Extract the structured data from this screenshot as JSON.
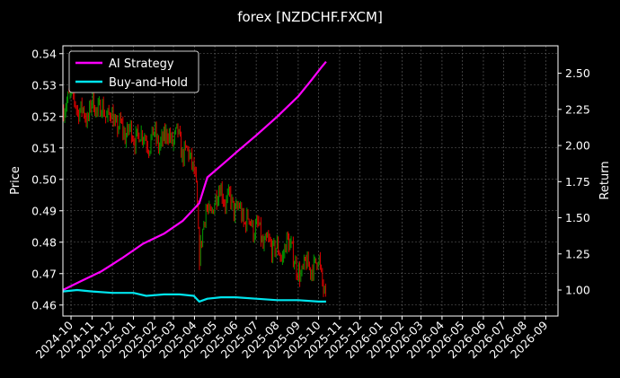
{
  "chart_data": {
    "type": "line",
    "title": "forex [NZDCHF.FXCM]",
    "ylabel_left": "Price",
    "ylabel_right": "Return",
    "x_range": [
      "2024-09-19",
      "2026-09-19"
    ],
    "x_ticks": [
      "2024-10",
      "2024-11",
      "2024-12",
      "2025-01",
      "2025-02",
      "2025-03",
      "2025-04",
      "2025-05",
      "2025-06",
      "2025-07",
      "2025-08",
      "2025-09",
      "2025-10",
      "2025-11",
      "2025-12",
      "2026-01",
      "2026-02",
      "2026-03",
      "2026-04",
      "2026-05",
      "2026-06",
      "2026-07",
      "2026-08",
      "2026-09"
    ],
    "left_axis": {
      "range": [
        0.4565,
        0.5425
      ],
      "ticks": [
        "0.46",
        "0.47",
        "0.48",
        "0.49",
        "0.50",
        "0.51",
        "0.52",
        "0.53",
        "0.54"
      ]
    },
    "right_axis": {
      "range": [
        0.82,
        2.69
      ],
      "ticks": [
        "1.00",
        "1.25",
        "1.50",
        "1.75",
        "2.00",
        "2.25",
        "2.50"
      ]
    },
    "grid": true,
    "legend_position": "top-left",
    "colors": {
      "up": "#009900",
      "down": "#dd0000",
      "strategy": "#ff00ff",
      "buyhold": "#00e5ee",
      "grid": "#666666"
    },
    "price_series": {
      "name": "NZDCHF.FXCM price",
      "x": [
        "2024-09-20",
        "2024-09-27",
        "2024-10-04",
        "2024-10-11",
        "2024-10-18",
        "2024-10-25",
        "2024-11-01",
        "2024-11-08",
        "2024-11-15",
        "2024-11-22",
        "2024-11-29",
        "2024-12-06",
        "2024-12-13",
        "2024-12-20",
        "2024-12-27",
        "2025-01-03",
        "2025-01-10",
        "2025-01-17",
        "2025-01-24",
        "2025-01-31",
        "2025-02-07",
        "2025-02-14",
        "2025-02-21",
        "2025-02-28",
        "2025-03-07",
        "2025-03-14",
        "2025-03-21",
        "2025-03-28",
        "2025-04-01",
        "2025-04-04",
        "2025-04-08",
        "2025-04-11",
        "2025-04-15",
        "2025-04-18",
        "2025-04-25",
        "2025-05-02",
        "2025-05-09",
        "2025-05-16",
        "2025-05-23",
        "2025-05-30",
        "2025-06-06",
        "2025-06-13",
        "2025-06-20",
        "2025-06-27",
        "2025-07-04",
        "2025-07-11",
        "2025-07-18",
        "2025-07-25",
        "2025-08-01",
        "2025-08-08",
        "2025-08-15",
        "2025-08-22",
        "2025-08-29",
        "2025-09-05",
        "2025-09-12",
        "2025-09-19",
        "2025-09-26",
        "2025-10-01",
        "2025-10-04",
        "2025-10-08",
        "2025-10-12"
      ],
      "values": [
        0.522,
        0.526,
        0.527,
        0.521,
        0.523,
        0.518,
        0.526,
        0.521,
        0.524,
        0.519,
        0.522,
        0.516,
        0.518,
        0.513,
        0.517,
        0.512,
        0.515,
        0.514,
        0.51,
        0.516,
        0.51,
        0.513,
        0.515,
        0.511,
        0.516,
        0.507,
        0.51,
        0.505,
        0.502,
        0.496,
        0.475,
        0.48,
        0.487,
        0.491,
        0.488,
        0.494,
        0.498,
        0.492,
        0.495,
        0.489,
        0.492,
        0.485,
        0.489,
        0.483,
        0.486,
        0.478,
        0.481,
        0.477,
        0.479,
        0.474,
        0.481,
        0.478,
        0.472,
        0.469,
        0.474,
        0.471,
        0.473,
        0.476,
        0.47,
        0.465,
        0.461
      ]
    },
    "series": [
      {
        "name": "AI Strategy",
        "axis": "right",
        "x": [
          "2024-09-19",
          "2024-10-15",
          "2024-11-15",
          "2024-12-15",
          "2025-01-15",
          "2025-02-15",
          "2025-03-15",
          "2025-03-31",
          "2025-04-08",
          "2025-04-20",
          "2025-05-10",
          "2025-06-01",
          "2025-07-01",
          "2025-08-01",
          "2025-09-01",
          "2025-09-20",
          "2025-10-05",
          "2025-10-12"
        ],
        "values": [
          1.0,
          1.06,
          1.13,
          1.22,
          1.32,
          1.39,
          1.48,
          1.56,
          1.6,
          1.78,
          1.86,
          1.95,
          2.07,
          2.2,
          2.34,
          2.45,
          2.54,
          2.58
        ]
      },
      {
        "name": "Buy-and-Hold",
        "axis": "right",
        "x": [
          "2024-09-19",
          "2024-10-10",
          "2024-11-01",
          "2024-12-01",
          "2025-01-01",
          "2025-01-20",
          "2025-02-15",
          "2025-03-10",
          "2025-03-31",
          "2025-04-08",
          "2025-04-20",
          "2025-05-10",
          "2025-06-01",
          "2025-07-01",
          "2025-08-01",
          "2025-09-01",
          "2025-10-01",
          "2025-10-12"
        ],
        "values": [
          0.99,
          1.0,
          0.99,
          0.98,
          0.98,
          0.96,
          0.97,
          0.97,
          0.96,
          0.92,
          0.94,
          0.95,
          0.95,
          0.94,
          0.93,
          0.93,
          0.92,
          0.92
        ]
      }
    ]
  }
}
